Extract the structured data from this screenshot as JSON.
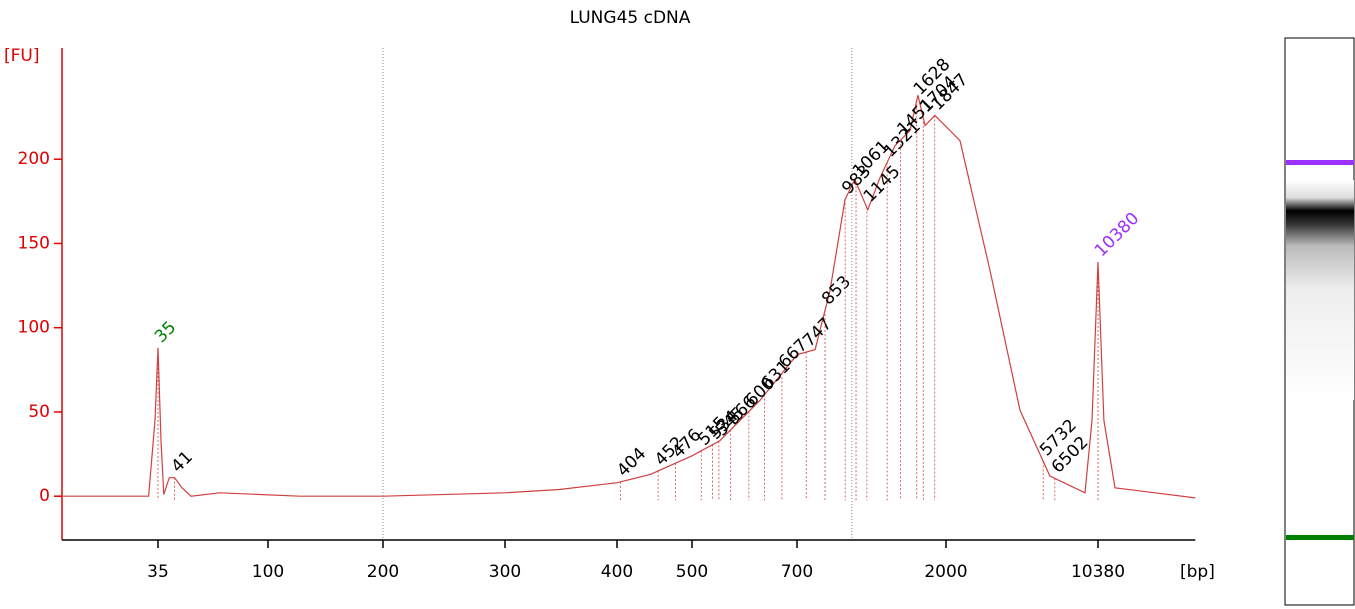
{
  "chart_data": {
    "type": "line",
    "title": "LUNG45 cDNA",
    "y_label": "[FU]",
    "x_label": "[bp]",
    "axis_color": "#e00000",
    "xlim": [
      14,
      29800
    ],
    "xticks": [
      35,
      100,
      200,
      300,
      400,
      500,
      700,
      2000,
      10380
    ],
    "ylim": [
      -26,
      266
    ],
    "yticks": [
      0,
      50,
      100,
      150,
      200
    ],
    "reference_lines": [
      200,
      1030
    ],
    "x": [
      14,
      32,
      34,
      35,
      36,
      37,
      39,
      41,
      44,
      48,
      63,
      121,
      200,
      300,
      345,
      400,
      442,
      500,
      547,
      622,
      700,
      795,
      883,
      982,
      1052,
      1153,
      1256,
      1396,
      1552,
      1641,
      1726,
      1849,
      2328,
      3221,
      4457,
      6166,
      9016,
      9727,
      10380,
      11066,
      12474,
      29800
    ],
    "series": [
      {
        "color": "#d04040",
        "values": [
          0,
          0,
          45,
          88,
          33,
          1,
          11,
          11,
          5,
          0,
          2,
          0,
          0,
          2,
          4,
          8,
          13,
          24,
          33,
          57,
          84,
          87,
          122,
          176,
          188,
          170,
          189,
          208,
          217,
          238,
          220,
          226,
          211,
          134,
          51,
          12,
          2,
          45,
          139,
          45,
          5,
          -1
        ]
      }
    ],
    "lower_marker": {
      "bp": 35,
      "color": "#008000"
    },
    "upper_marker": {
      "bp": 10380,
      "color": "#9b30ff"
    },
    "peaks": [
      41,
      404,
      452,
      476,
      515,
      534,
      545,
      566,
      600,
      631,
      667,
      747,
      853,
      983,
      1061,
      1145,
      1321,
      1451,
      1628,
      1704,
      1847,
      5732,
      6502
    ]
  }
}
